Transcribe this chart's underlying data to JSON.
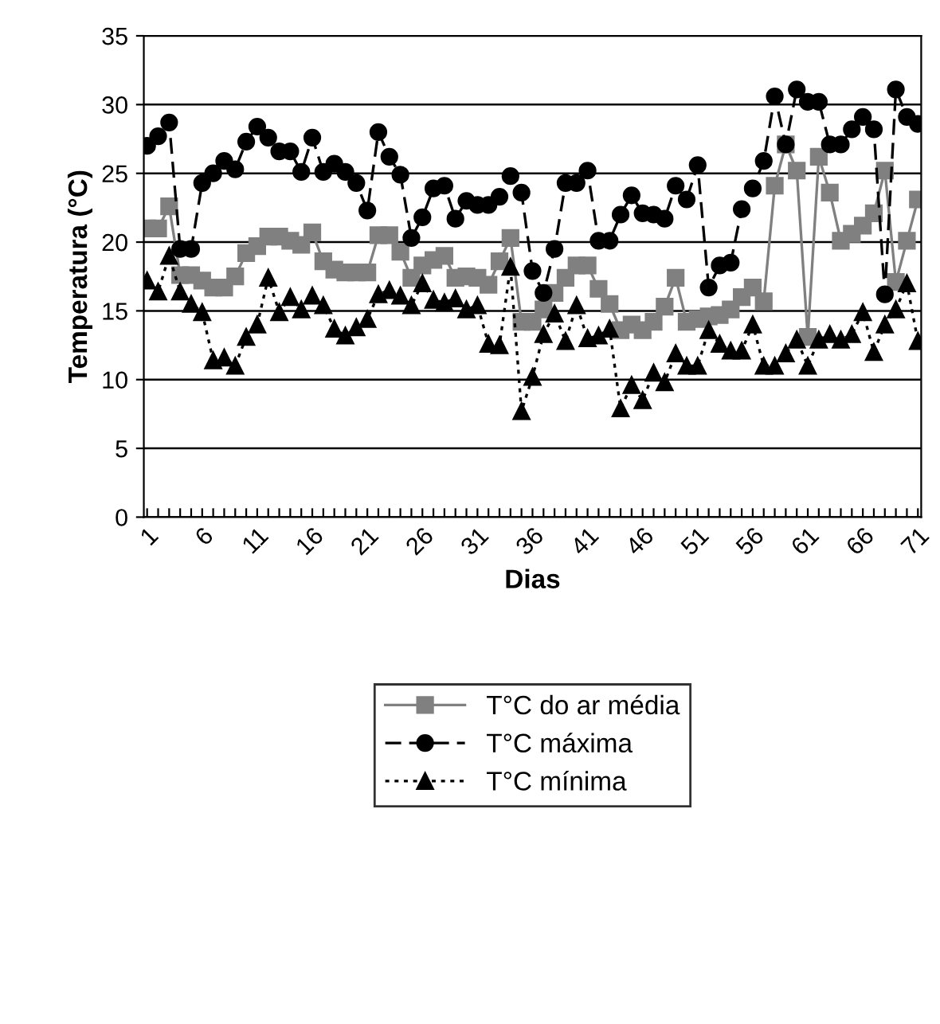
{
  "chart_data": {
    "type": "line",
    "xlabel": "Dias",
    "ylabel": "Temperatura (°C)",
    "categories": [
      "1",
      null,
      null,
      null,
      null,
      "6",
      null,
      null,
      null,
      null,
      "11",
      null,
      null,
      null,
      null,
      "16",
      null,
      null,
      null,
      null,
      "21",
      null,
      null,
      null,
      null,
      "26",
      null,
      null,
      null,
      null,
      "31",
      null,
      null,
      null,
      null,
      "36",
      null,
      null,
      null,
      null,
      "41",
      null,
      null,
      null,
      null,
      "46",
      null,
      null,
      null,
      null,
      "51",
      null,
      null,
      null,
      null,
      "56",
      null,
      null,
      null,
      null,
      "61",
      null,
      null,
      null,
      null,
      "66",
      null,
      null,
      null,
      null,
      "71"
    ],
    "ylim": [
      0,
      35
    ],
    "yticks": [
      0,
      5,
      10,
      15,
      20,
      25,
      30,
      35
    ],
    "grid": "y",
    "legend": "bottom",
    "series": [
      {
        "name": "T°C do ar média",
        "color": "#808080",
        "marker": "square",
        "line_style": "solid",
        "values": [
          21.0,
          21.0,
          22.6,
          17.6,
          17.6,
          17.2,
          16.7,
          16.7,
          17.5,
          19.2,
          19.7,
          20.4,
          20.4,
          20.1,
          19.8,
          20.7,
          18.6,
          18.0,
          17.8,
          17.8,
          17.8,
          20.5,
          20.5,
          19.3,
          17.4,
          18.3,
          18.7,
          19.0,
          17.4,
          17.5,
          17.4,
          16.9,
          18.6,
          20.3,
          14.2,
          14.2,
          15.1,
          16.3,
          17.4,
          18.3,
          18.3,
          16.6,
          15.5,
          13.6,
          14.0,
          13.6,
          14.2,
          15.3,
          17.4,
          14.2,
          14.4,
          14.6,
          14.7,
          15.1,
          16.0,
          16.7,
          15.7,
          24.1,
          27.1,
          25.2,
          13.1,
          26.2,
          23.6,
          20.1,
          20.6,
          21.2,
          22.1,
          25.2,
          17.1,
          20.1,
          23.1
        ]
      },
      {
        "name": "T°C máxima",
        "color": "#000000",
        "marker": "circle",
        "line_style": "dashed",
        "values": [
          27.0,
          27.7,
          28.7,
          19.5,
          19.5,
          24.3,
          25.0,
          25.9,
          25.3,
          27.3,
          28.4,
          27.6,
          26.6,
          26.6,
          25.1,
          27.6,
          25.1,
          25.7,
          25.1,
          24.3,
          22.3,
          28.0,
          26.2,
          24.9,
          20.3,
          21.8,
          23.9,
          24.1,
          21.7,
          23.0,
          22.7,
          22.7,
          23.3,
          24.8,
          23.6,
          17.9,
          16.3,
          19.5,
          24.3,
          24.3,
          25.2,
          20.1,
          20.1,
          22.0,
          23.4,
          22.1,
          22.0,
          21.7,
          24.1,
          23.1,
          25.6,
          16.7,
          18.3,
          18.5,
          22.4,
          23.9,
          25.9,
          30.6,
          27.1,
          31.1,
          30.2,
          30.2,
          27.1,
          27.1,
          28.2,
          29.1,
          28.2,
          16.2,
          31.1,
          29.1,
          28.6
        ]
      },
      {
        "name": "T°C mínima",
        "color": "#000000",
        "marker": "triangle",
        "line_style": "dotted",
        "values": [
          17.2,
          16.4,
          19.0,
          16.4,
          15.5,
          14.9,
          11.4,
          11.6,
          11.0,
          13.1,
          14.0,
          17.4,
          14.9,
          16.0,
          15.1,
          16.1,
          15.4,
          13.7,
          13.2,
          13.8,
          14.4,
          16.2,
          16.5,
          16.1,
          15.4,
          17.0,
          15.8,
          15.6,
          15.9,
          15.1,
          15.4,
          12.6,
          12.5,
          18.2,
          7.7,
          10.2,
          13.3,
          14.8,
          12.8,
          15.4,
          13.0,
          13.2,
          13.7,
          7.9,
          9.6,
          8.5,
          10.5,
          9.8,
          11.9,
          11.0,
          11.0,
          13.6,
          12.6,
          12.1,
          12.1,
          14.0,
          11.0,
          11.0,
          11.9,
          12.9,
          11.0,
          12.9,
          13.3,
          12.9,
          13.3,
          14.9,
          12.0,
          14.0,
          15.1,
          17.0,
          12.8
        ]
      }
    ]
  }
}
